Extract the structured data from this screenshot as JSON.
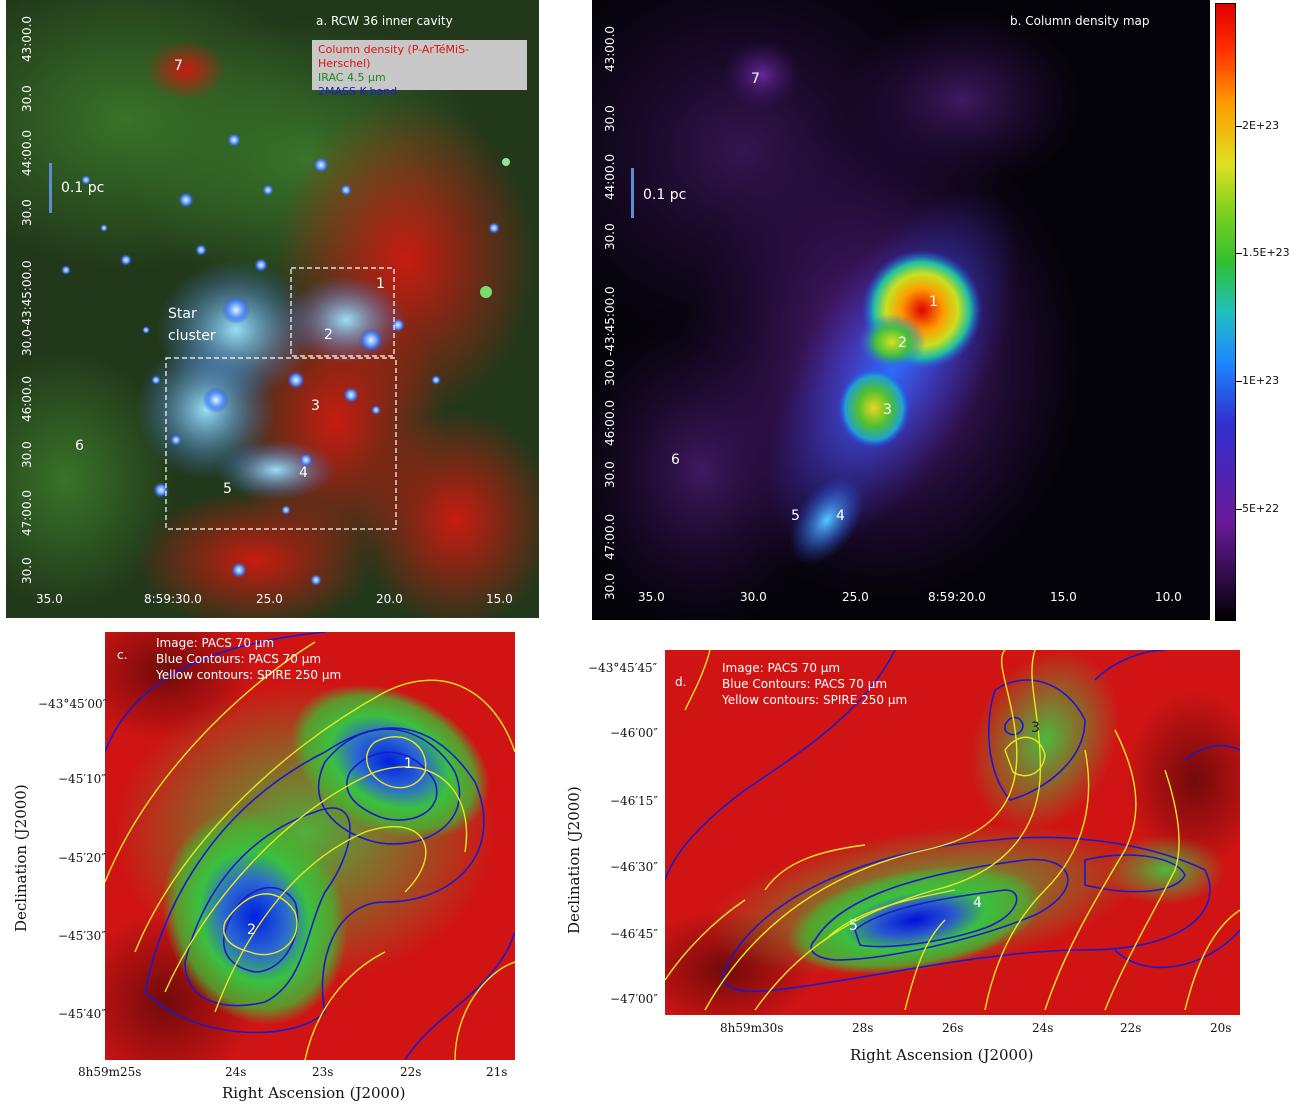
{
  "panel_a": {
    "title": "a. RCW 36 inner cavity",
    "legend": [
      "Column density (P-ArTéMiS-Herschel)",
      "IRAC 4.5 µm",
      "2MASS  K-band"
    ],
    "legend_colors": [
      "#e01010",
      "#1a8a1a",
      "#1a1ad0"
    ],
    "scale_label": "0.1 pc",
    "cluster_label_1": "Star",
    "cluster_label_2": "cluster",
    "sources": [
      "1",
      "2",
      "3",
      "4",
      "5",
      "6",
      "7"
    ],
    "yticks": [
      "43:00.0",
      "30.0",
      "44:00.0",
      "30.0",
      "-43:45:00.0",
      "30.0",
      "46:00.0",
      "30.0",
      "47:00.0",
      "30.0"
    ],
    "xticks": [
      "35.0",
      "8:59:30.0",
      "25.0",
      "20.0",
      "15.0"
    ]
  },
  "panel_b": {
    "title": "b. Column density map",
    "scale_label": "0.1 pc",
    "sources": [
      "1",
      "2",
      "3",
      "4",
      "5",
      "6",
      "7"
    ],
    "yticks": [
      "43:00.0",
      "30.0",
      "44:00.0",
      "30.0",
      "-43:45:00.0",
      "30.0",
      "46:00.0",
      "30.0",
      "47:00.0",
      "30.0"
    ],
    "xticks": [
      "35.0",
      "30.0",
      "25.0",
      "8:59:20.0",
      "15.0",
      "10.0"
    ],
    "colorbar_labels": [
      "2E+23",
      "1.5E+23",
      "1E+23",
      "5E+22"
    ]
  },
  "panel_c": {
    "caption": [
      "c.",
      "Image: PACS 70 µm",
      "Blue Contours: PACS 70 µm",
      "Yellow contours: SPIRE 250 µm"
    ],
    "sources": [
      "1",
      "2"
    ],
    "yticks": [
      "−43°45′00″",
      "−45′10″",
      "−45′20″",
      "−45′30″",
      "−45′40″"
    ],
    "xticks": [
      "8h59m25s",
      "24s",
      "23s",
      "22s",
      "21s"
    ],
    "xlabel": "Right Ascension (J2000)",
    "ylabel": "Declination (J2000)"
  },
  "panel_d": {
    "caption": [
      "d.",
      "Image: PACS 70 µm",
      "Blue Contours: PACS 70 µm",
      "Yellow contours: SPIRE 250 µm"
    ],
    "sources": [
      "3",
      "4",
      "5"
    ],
    "yticks": [
      "−43°45′45″",
      "−46′00″",
      "−46′15″",
      "−46′30″",
      "−46′45″",
      "−47′00″"
    ],
    "xticks": [
      "8h59m30s",
      "28s",
      "26s",
      "24s",
      "22s",
      "20s"
    ],
    "xlabel": "Right Ascension (J2000)",
    "ylabel": "Declination (J2000)"
  }
}
